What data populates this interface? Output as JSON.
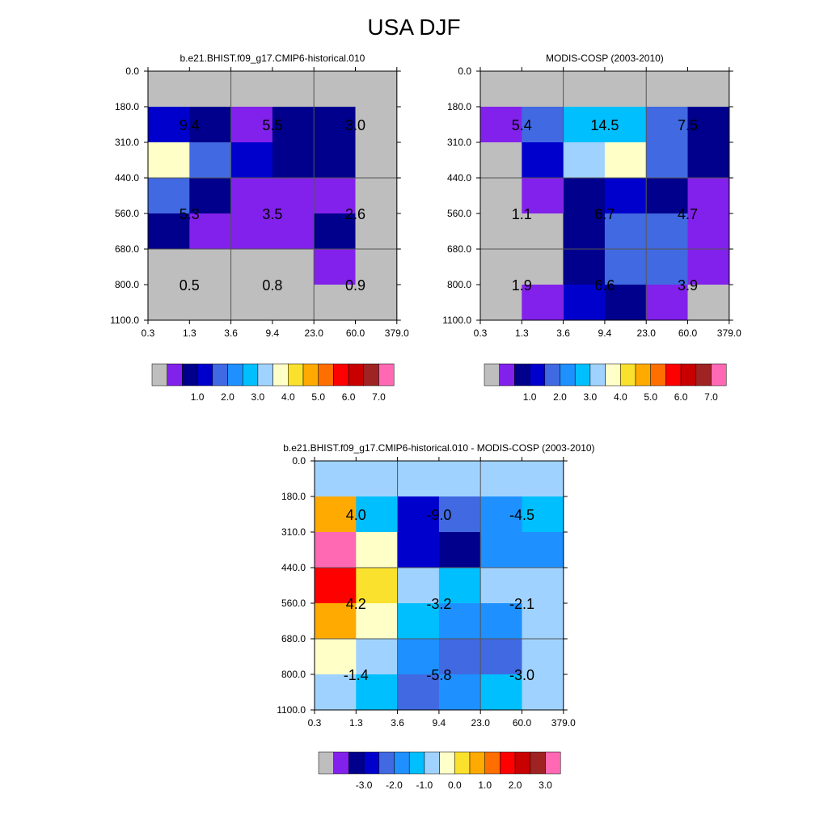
{
  "title": "USA DJF",
  "chart_data": [
    {
      "type": "heatmap",
      "title": "b.e21.BHIST.f09_g17.CMIP6-historical.010",
      "x_ticks": [
        "0.3",
        "1.3",
        "3.6",
        "9.4",
        "23.0",
        "60.0",
        "379.0"
      ],
      "y_ticks": [
        "0.0",
        "180.0",
        "310.0",
        "440.0",
        "560.0",
        "680.0",
        "800.0",
        "1100.0"
      ],
      "cells": [
        [
          "gray",
          "gray",
          "gray",
          "gray",
          "gray",
          "gray"
        ],
        [
          "blue",
          "navy",
          "violet",
          "navy",
          "navy",
          "gray"
        ],
        [
          "cream",
          "royal",
          "blue",
          "navy",
          "navy",
          "gray"
        ],
        [
          "royal",
          "navy",
          "violet",
          "violet",
          "violet",
          "gray"
        ],
        [
          "navy",
          "violet",
          "violet",
          "violet",
          "navy",
          "gray"
        ],
        [
          "gray",
          "gray",
          "gray",
          "gray",
          "violet",
          "gray"
        ],
        [
          "gray",
          "gray",
          "gray",
          "gray",
          "gray",
          "gray"
        ]
      ],
      "box_labels": [
        [
          "9.4",
          "5.5",
          "3.0"
        ],
        [
          "5.3",
          "3.5",
          "2.6"
        ],
        [
          "0.5",
          "0.8",
          "0.9"
        ]
      ],
      "colorbar": {
        "colors": [
          "#bebebe",
          "#8221eb",
          "#00008c",
          "#0000cd",
          "#4169e1",
          "#1e90ff",
          "#00bfff",
          "#a0d2ff",
          "#ffffc8",
          "#fae12d",
          "#ffaa00",
          "#ff6e00",
          "#ff0000",
          "#c80000",
          "#a02323",
          "#ff69b4"
        ],
        "labels": [
          "1.0",
          "2.0",
          "3.0",
          "4.0",
          "5.0",
          "6.0",
          "7.0"
        ]
      }
    },
    {
      "type": "heatmap",
      "title": "MODIS-COSP (2003-2010)",
      "x_ticks": [
        "0.3",
        "1.3",
        "3.6",
        "9.4",
        "23.0",
        "60.0",
        "379.0"
      ],
      "y_ticks": [
        "0.0",
        "180.0",
        "310.0",
        "440.0",
        "560.0",
        "680.0",
        "800.0",
        "1100.0"
      ],
      "cells": [
        [
          "gray",
          "gray",
          "gray",
          "gray",
          "gray",
          "gray"
        ],
        [
          "violet",
          "royal",
          "sky",
          "sky",
          "royal",
          "navy"
        ],
        [
          "gray",
          "blue",
          "pale",
          "cream",
          "royal",
          "navy"
        ],
        [
          "gray",
          "violet",
          "navy",
          "blue",
          "navy",
          "violet"
        ],
        [
          "gray",
          "gray",
          "navy",
          "royal",
          "royal",
          "violet"
        ],
        [
          "gray",
          "gray",
          "navy",
          "royal",
          "royal",
          "violet"
        ],
        [
          "gray",
          "violet",
          "blue",
          "navy",
          "violet",
          "gray"
        ]
      ],
      "box_labels": [
        [
          "5.4",
          "14.5",
          "7.5"
        ],
        [
          "1.1",
          "6.7",
          "4.7"
        ],
        [
          "1.9",
          "6.6",
          "3.9"
        ]
      ],
      "colorbar": {
        "colors": [
          "#bebebe",
          "#8221eb",
          "#00008c",
          "#0000cd",
          "#4169e1",
          "#1e90ff",
          "#00bfff",
          "#a0d2ff",
          "#ffffc8",
          "#fae12d",
          "#ffaa00",
          "#ff6e00",
          "#ff0000",
          "#c80000",
          "#a02323",
          "#ff69b4"
        ],
        "labels": [
          "1.0",
          "2.0",
          "3.0",
          "4.0",
          "5.0",
          "6.0",
          "7.0"
        ]
      }
    },
    {
      "type": "heatmap",
      "title": "b.e21.BHIST.f09_g17.CMIP6-historical.010 - MODIS-COSP (2003-2010)",
      "x_ticks": [
        "0.3",
        "1.3",
        "3.6",
        "9.4",
        "23.0",
        "60.0",
        "379.0"
      ],
      "y_ticks": [
        "0.0",
        "180.0",
        "310.0",
        "440.0",
        "560.0",
        "680.0",
        "800.0",
        "1100.0"
      ],
      "cells": [
        [
          "pale",
          "pale",
          "pale",
          "pale",
          "pale",
          "pale"
        ],
        [
          "orange",
          "sky",
          "blue",
          "royal",
          "dodger",
          "sky"
        ],
        [
          "pink",
          "cream",
          "blue",
          "navy",
          "dodger",
          "dodger"
        ],
        [
          "red",
          "yellow",
          "pale",
          "sky",
          "pale",
          "pale"
        ],
        [
          "orange",
          "cream",
          "sky",
          "dodger",
          "dodger",
          "pale"
        ],
        [
          "cream",
          "pale",
          "dodger",
          "royal",
          "royal",
          "pale"
        ],
        [
          "pale",
          "sky",
          "royal",
          "dodger",
          "sky",
          "pale"
        ]
      ],
      "box_labels": [
        [
          "4.0",
          "-9.0",
          "-4.5"
        ],
        [
          "4.2",
          "-3.2",
          "-2.1"
        ],
        [
          "-1.4",
          "-5.8",
          "-3.0"
        ]
      ],
      "colorbar": {
        "colors": [
          "#bebebe",
          "#8221eb",
          "#00008c",
          "#0000cd",
          "#4169e1",
          "#1e90ff",
          "#00bfff",
          "#a0d2ff",
          "#ffffc8",
          "#fae12d",
          "#ffaa00",
          "#ff6e00",
          "#ff0000",
          "#c80000",
          "#a02323",
          "#ff69b4"
        ],
        "labels": [
          "-3.0",
          "-2.0",
          "-1.0",
          "0.0",
          "1.0",
          "2.0",
          "3.0"
        ]
      }
    }
  ],
  "palette": {
    "gray": "#bebebe",
    "violet": "#8221eb",
    "navy": "#00008c",
    "blue": "#0000cd",
    "royal": "#4169e1",
    "dodger": "#1e90ff",
    "sky": "#00bfff",
    "pale": "#a0d2ff",
    "cream": "#ffffc8",
    "yellow": "#fae12d",
    "orange": "#ffaa00",
    "red": "#ff0000",
    "pink": "#ff69b4"
  }
}
